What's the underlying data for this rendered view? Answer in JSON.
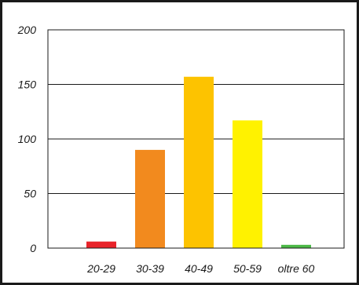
{
  "chart_data": {
    "type": "bar",
    "categories": [
      "20-29",
      "30-39",
      "40-49",
      "50-59",
      "oltre 60"
    ],
    "values": [
      6,
      90,
      157,
      117,
      3
    ],
    "colors": [
      "#e8232a",
      "#f28a1e",
      "#fdc300",
      "#fff200",
      "#4cb947"
    ],
    "ylim": [
      0,
      200
    ],
    "yticks": [
      0,
      50,
      100,
      150,
      200
    ],
    "grid": true,
    "title": "",
    "xlabel": "",
    "ylabel": ""
  }
}
